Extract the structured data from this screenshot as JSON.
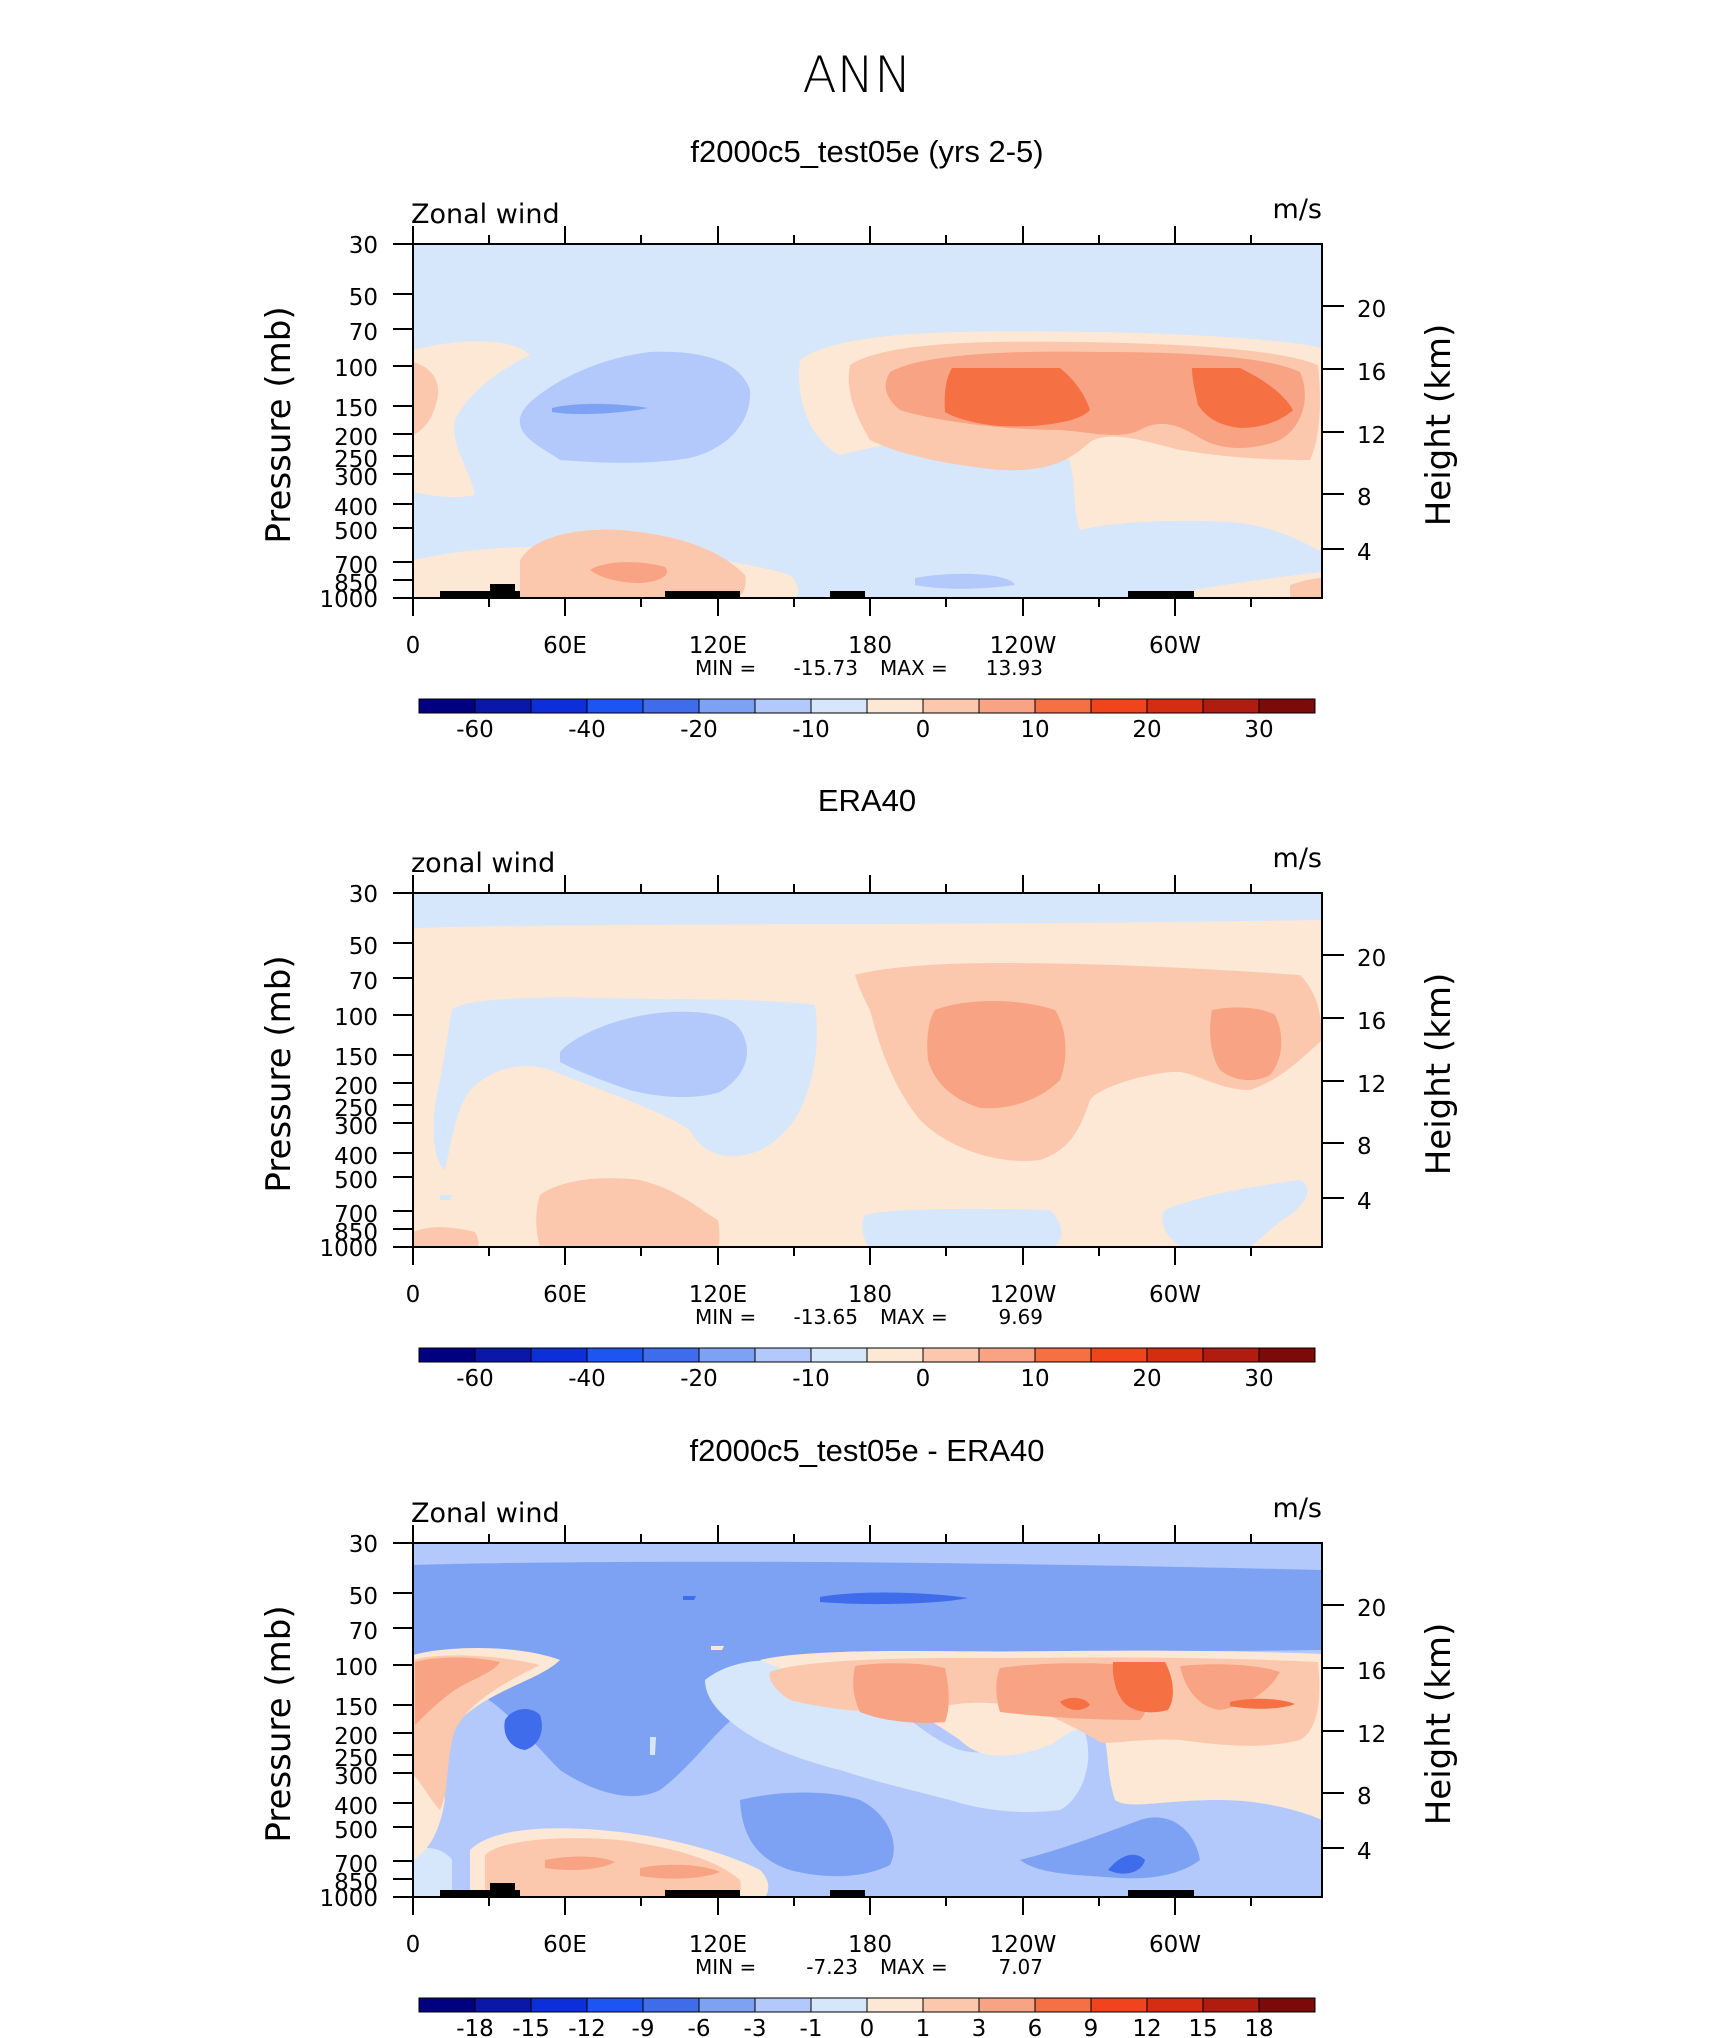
{
  "main_title": "ANN",
  "colors": {
    "c_m70": "#000080",
    "c_m60": "#0a17a8",
    "c_m50": "#0d2fd9",
    "c_m40": "#1c55f2",
    "c_m30": "#3e6cea",
    "c_m20": "#7da2f3",
    "c_m10": "#b3c9fb",
    "c_m5": "#d6e6fb",
    "c_0": "#fde8d6",
    "c_5": "#fbc8ae",
    "c_10": "#f8a384",
    "c_15": "#f57143",
    "c_20": "#f0451c",
    "c_25": "#d42d12",
    "c_30": "#b01c10",
    "c_35": "#7c0a08",
    "black": "#000000"
  },
  "chart_data": [
    {
      "type": "heatmap",
      "title": "f2000c5_test05e (yrs 2-5)",
      "left_label": "Zonal wind",
      "right_label": "m/s",
      "ylabel": "Pressure (mb)",
      "y2label": "Height (km)",
      "xticks": [
        "0",
        "60E",
        "120E",
        "180",
        "120W",
        "60W"
      ],
      "yticks": [
        "30",
        "50",
        "70",
        "100",
        "150",
        "200",
        "250",
        "300",
        "400",
        "500",
        "700",
        "850",
        "1000"
      ],
      "y2ticks": [
        "20",
        "16",
        "12",
        "8",
        "4"
      ],
      "ylim": [
        1000,
        30
      ],
      "min_label": "MIN =",
      "min_value": "-15.73",
      "max_label": "MAX =",
      "max_value": "13.93",
      "min": -15.73,
      "max": 13.93,
      "colorbar_labels": [
        "-60",
        "-40",
        "-20",
        "-10",
        "0",
        "10",
        "20",
        "30"
      ],
      "colorbar_levels": [
        -70,
        -60,
        -50,
        -40,
        -30,
        -20,
        -10,
        -5,
        0,
        5,
        10,
        15,
        20,
        25,
        30,
        35
      ]
    },
    {
      "type": "heatmap",
      "title": "ERA40",
      "left_label": "zonal wind",
      "right_label": "m/s",
      "ylabel": "Pressure (mb)",
      "y2label": "Height (km)",
      "xticks": [
        "0",
        "60E",
        "120E",
        "180",
        "120W",
        "60W"
      ],
      "yticks": [
        "30",
        "50",
        "70",
        "100",
        "150",
        "200",
        "250",
        "300",
        "400",
        "500",
        "700",
        "850",
        "1000"
      ],
      "y2ticks": [
        "20",
        "16",
        "12",
        "8",
        "4"
      ],
      "ylim": [
        1000,
        30
      ],
      "min_label": "MIN =",
      "min_value": "-13.65",
      "max_label": "MAX =",
      "max_value": "9.69",
      "min": -13.65,
      "max": 9.69,
      "colorbar_labels": [
        "-60",
        "-40",
        "-20",
        "-10",
        "0",
        "10",
        "20",
        "30"
      ],
      "colorbar_levels": [
        -70,
        -60,
        -50,
        -40,
        -30,
        -20,
        -10,
        -5,
        0,
        5,
        10,
        15,
        20,
        25,
        30,
        35
      ]
    },
    {
      "type": "heatmap",
      "title": "f2000c5_test05e - ERA40",
      "left_label": "Zonal wind",
      "right_label": "m/s",
      "ylabel": "Pressure (mb)",
      "y2label": "Height (km)",
      "xticks": [
        "0",
        "60E",
        "120E",
        "180",
        "120W",
        "60W"
      ],
      "yticks": [
        "30",
        "50",
        "70",
        "100",
        "150",
        "200",
        "250",
        "300",
        "400",
        "500",
        "700",
        "850",
        "1000"
      ],
      "y2ticks": [
        "20",
        "16",
        "12",
        "8",
        "4"
      ],
      "ylim": [
        1000,
        30
      ],
      "min_label": "MIN =",
      "min_value": "-7.23",
      "max_label": "MAX =",
      "max_value": "7.07",
      "min": -7.23,
      "max": 7.07,
      "colorbar_labels": [
        "-18",
        "-15",
        "-12",
        "-9",
        "-6",
        "-3",
        "-1",
        "0",
        "1",
        "3",
        "6",
        "9",
        "12",
        "15",
        "18"
      ],
      "colorbar_levels": [
        -18,
        -15,
        -12,
        -9,
        -6,
        -3,
        -1,
        0,
        1,
        3,
        6,
        9,
        12,
        15,
        18
      ]
    }
  ]
}
